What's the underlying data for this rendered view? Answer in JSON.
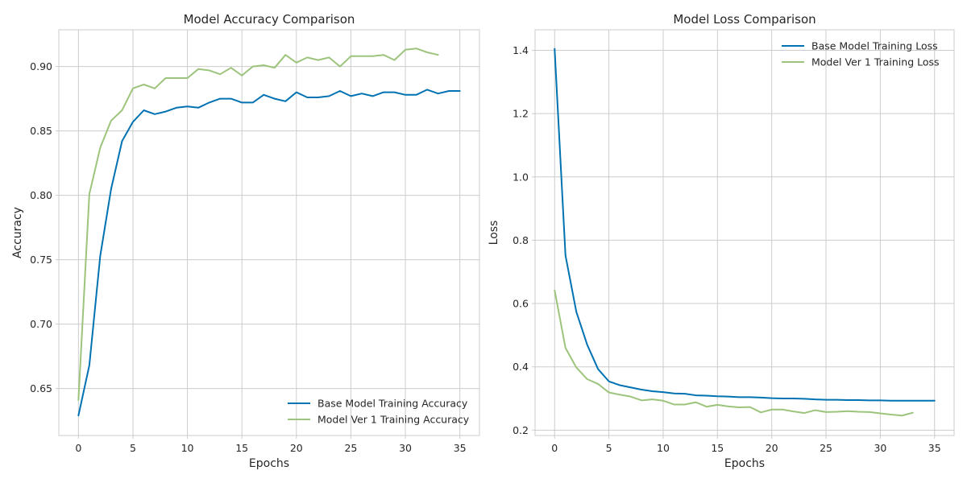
{
  "chart_data": [
    {
      "type": "line",
      "title": "Model Accuracy Comparison",
      "xlabel": "Epochs",
      "ylabel": "Accuracy",
      "xlim": [
        -1.8,
        36.8
      ],
      "ylim": [
        0.6135,
        0.9285
      ],
      "xticks": [
        0,
        5,
        10,
        15,
        20,
        25,
        30,
        35
      ],
      "yticks": [
        0.65,
        0.7,
        0.75,
        0.8,
        0.85,
        0.9
      ],
      "ytick_format": 2,
      "grid": true,
      "legend_position": "lower-right",
      "series": [
        {
          "name": "Base Model Training Accuracy",
          "color": "#0072b2",
          "x": [
            0,
            1,
            2,
            3,
            4,
            5,
            6,
            7,
            8,
            9,
            10,
            11,
            12,
            13,
            14,
            15,
            16,
            17,
            18,
            19,
            20,
            21,
            22,
            23,
            24,
            25,
            26,
            27,
            28,
            29,
            30,
            31,
            32,
            33,
            34,
            35
          ],
          "values": [
            0.629,
            0.668,
            0.753,
            0.805,
            0.842,
            0.857,
            0.866,
            0.863,
            0.865,
            0.868,
            0.869,
            0.868,
            0.872,
            0.875,
            0.875,
            0.872,
            0.872,
            0.878,
            0.875,
            0.873,
            0.88,
            0.876,
            0.876,
            0.877,
            0.881,
            0.877,
            0.879,
            0.877,
            0.88,
            0.88,
            0.878,
            0.878,
            0.882,
            0.879,
            0.881,
            0.881
          ]
        },
        {
          "name": "Model Ver 1 Training Accuracy",
          "color": "#9dc47c",
          "x": [
            0,
            1,
            2,
            3,
            4,
            5,
            6,
            7,
            8,
            9,
            10,
            11,
            12,
            13,
            14,
            15,
            16,
            17,
            18,
            19,
            20,
            21,
            22,
            23,
            24,
            25,
            26,
            27,
            28,
            29,
            30,
            31,
            32,
            33
          ],
          "values": [
            0.641,
            0.801,
            0.837,
            0.858,
            0.866,
            0.883,
            0.886,
            0.883,
            0.891,
            0.891,
            0.891,
            0.898,
            0.897,
            0.894,
            0.899,
            0.893,
            0.9,
            0.901,
            0.899,
            0.909,
            0.903,
            0.907,
            0.905,
            0.907,
            0.9,
            0.908,
            0.908,
            0.908,
            0.909,
            0.905,
            0.913,
            0.914,
            0.911,
            0.909
          ]
        }
      ]
    },
    {
      "type": "line",
      "title": "Model Loss Comparison",
      "xlabel": "Epochs",
      "ylabel": "Loss",
      "xlim": [
        -1.8,
        36.8
      ],
      "ylim": [
        0.183,
        1.465
      ],
      "xticks": [
        0,
        5,
        10,
        15,
        20,
        25,
        30,
        35
      ],
      "yticks": [
        0.2,
        0.4,
        0.6,
        0.8,
        1.0,
        1.2,
        1.4
      ],
      "ytick_format": 1,
      "grid": true,
      "legend_position": "upper-right",
      "series": [
        {
          "name": "Base Model Training Loss",
          "color": "#0072b2",
          "x": [
            0,
            1,
            2,
            3,
            4,
            5,
            6,
            7,
            8,
            9,
            10,
            11,
            12,
            13,
            14,
            15,
            16,
            17,
            18,
            19,
            20,
            21,
            22,
            23,
            24,
            25,
            26,
            27,
            28,
            29,
            30,
            31,
            32,
            33,
            34,
            35
          ],
          "values": [
            1.405,
            0.752,
            0.574,
            0.47,
            0.393,
            0.354,
            0.342,
            0.335,
            0.328,
            0.323,
            0.32,
            0.316,
            0.315,
            0.31,
            0.309,
            0.307,
            0.306,
            0.304,
            0.304,
            0.303,
            0.301,
            0.3,
            0.3,
            0.299,
            0.297,
            0.296,
            0.296,
            0.295,
            0.295,
            0.294,
            0.294,
            0.293,
            0.293,
            0.293,
            0.293,
            0.293
          ]
        },
        {
          "name": "Model Ver 1 Training Loss",
          "color": "#9dc47c",
          "x": [
            0,
            1,
            2,
            3,
            4,
            5,
            6,
            7,
            8,
            9,
            10,
            11,
            12,
            13,
            14,
            15,
            16,
            17,
            18,
            19,
            20,
            21,
            22,
            23,
            24,
            25,
            26,
            27,
            28,
            29,
            30,
            31,
            32,
            33
          ],
          "values": [
            0.642,
            0.46,
            0.398,
            0.361,
            0.346,
            0.319,
            0.312,
            0.306,
            0.294,
            0.297,
            0.293,
            0.281,
            0.281,
            0.288,
            0.274,
            0.28,
            0.275,
            0.272,
            0.273,
            0.256,
            0.265,
            0.265,
            0.259,
            0.254,
            0.263,
            0.257,
            0.258,
            0.26,
            0.258,
            0.257,
            0.253,
            0.249,
            0.246,
            0.255
          ]
        }
      ]
    }
  ]
}
